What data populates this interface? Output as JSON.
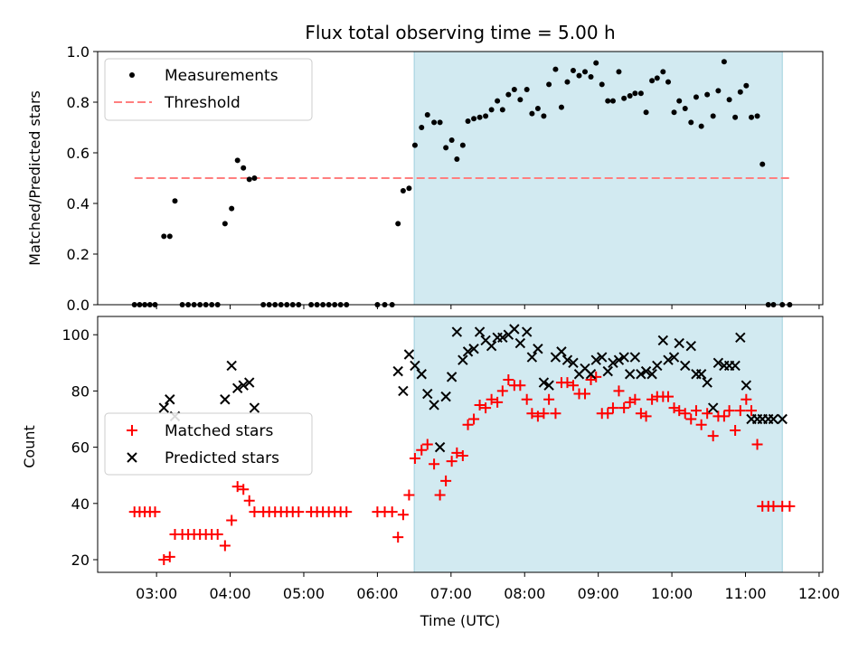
{
  "chart_data": [
    {
      "type": "scatter",
      "title": "Flux total observing time = 5.00 h",
      "ylabel": "Matched/Predicted stars",
      "ylim": [
        0,
        1.0
      ],
      "xlim": [
        2.2,
        12.05
      ],
      "yticks": [
        "0.0",
        "0.2",
        "0.4",
        "0.6",
        "0.8",
        "1.0"
      ],
      "highlight_span": [
        6.5,
        11.5
      ],
      "threshold": {
        "value": 0.5,
        "x_range": [
          2.7,
          11.6
        ],
        "color": "#ff7f7f"
      },
      "legend": {
        "position": "top-left",
        "entries": [
          "Measurements",
          "Threshold"
        ]
      },
      "series": [
        {
          "name": "Measurements",
          "marker": "dot",
          "color": "#000000",
          "x": [
            2.7,
            2.77,
            2.84,
            2.91,
            2.98,
            3.1,
            3.18,
            3.25,
            3.35,
            3.43,
            3.51,
            3.59,
            3.67,
            3.75,
            3.83,
            3.93,
            4.02,
            4.1,
            4.18,
            4.26,
            4.33,
            4.45,
            4.53,
            4.61,
            4.69,
            4.77,
            4.85,
            4.93,
            5.1,
            5.18,
            5.26,
            5.34,
            5.42,
            5.5,
            5.58,
            6.0,
            6.1,
            6.2,
            6.28,
            6.35,
            6.43,
            6.51,
            6.6,
            6.68,
            6.77,
            6.85,
            6.93,
            7.01,
            7.08,
            7.16,
            7.23,
            7.31,
            7.39,
            7.47,
            7.55,
            7.63,
            7.7,
            7.78,
            7.86,
            7.94,
            8.03,
            8.1,
            8.18,
            8.26,
            8.33,
            8.42,
            8.5,
            8.58,
            8.66,
            8.74,
            8.82,
            8.9,
            8.97,
            9.05,
            9.13,
            9.2,
            9.28,
            9.35,
            9.43,
            9.5,
            9.58,
            9.65,
            9.73,
            9.8,
            9.88,
            9.95,
            10.03,
            10.1,
            10.18,
            10.26,
            10.33,
            10.4,
            10.48,
            10.56,
            10.63,
            10.71,
            10.78,
            10.86,
            10.93,
            11.01,
            11.08,
            11.16,
            11.23,
            11.31,
            11.38,
            11.5,
            11.6
          ],
          "y": [
            0.0,
            0.0,
            0.0,
            0.0,
            0.0,
            0.27,
            0.27,
            0.41,
            0.0,
            0.0,
            0.0,
            0.0,
            0.0,
            0.0,
            0.0,
            0.32,
            0.38,
            0.57,
            0.54,
            0.495,
            0.5,
            0.0,
            0.0,
            0.0,
            0.0,
            0.0,
            0.0,
            0.0,
            0.0,
            0.0,
            0.0,
            0.0,
            0.0,
            0.0,
            0.0,
            0.0,
            0.0,
            0.0,
            0.32,
            0.45,
            0.46,
            0.63,
            0.7,
            0.75,
            0.72,
            0.72,
            0.62,
            0.65,
            0.575,
            0.63,
            0.725,
            0.735,
            0.74,
            0.745,
            0.77,
            0.805,
            0.77,
            0.83,
            0.85,
            0.81,
            0.85,
            0.755,
            0.775,
            0.745,
            0.87,
            0.93,
            0.78,
            0.88,
            0.925,
            0.905,
            0.92,
            0.9,
            0.955,
            0.87,
            0.805,
            0.805,
            0.92,
            0.815,
            0.825,
            0.835,
            0.835,
            0.76,
            0.885,
            0.895,
            0.92,
            0.88,
            0.76,
            0.805,
            0.775,
            0.72,
            0.82,
            0.705,
            0.83,
            0.745,
            0.845,
            0.96,
            0.81,
            0.74,
            0.84,
            0.865,
            0.74,
            0.745,
            0.555,
            0.0,
            0.0,
            0.0,
            0.0
          ]
        }
      ]
    },
    {
      "type": "scatter",
      "ylabel": "Count",
      "xlabel": "Time (UTC)",
      "ylim": [
        15.5,
        106.5
      ],
      "xlim": [
        2.2,
        12.05
      ],
      "yticks": [
        "20",
        "40",
        "60",
        "80",
        "100"
      ],
      "xticks": [
        "03:00",
        "04:00",
        "05:00",
        "06:00",
        "07:00",
        "08:00",
        "09:00",
        "10:00",
        "11:00",
        "12:00"
      ],
      "highlight_span": [
        6.5,
        11.5
      ],
      "legend": {
        "position": "center-left",
        "entries": [
          "Matched stars",
          "Predicted stars"
        ]
      },
      "series": [
        {
          "name": "Matched stars",
          "marker": "plus",
          "color": "#ff0000",
          "x": [
            2.7,
            2.77,
            2.84,
            2.91,
            2.98,
            3.1,
            3.18,
            3.25,
            3.35,
            3.43,
            3.51,
            3.59,
            3.67,
            3.75,
            3.83,
            3.93,
            4.02,
            4.1,
            4.18,
            4.26,
            4.33,
            4.45,
            4.53,
            4.61,
            4.69,
            4.77,
            4.85,
            4.93,
            5.1,
            5.18,
            5.26,
            5.34,
            5.42,
            5.5,
            5.58,
            6.0,
            6.1,
            6.2,
            6.28,
            6.35,
            6.43,
            6.51,
            6.6,
            6.68,
            6.77,
            6.85,
            6.93,
            7.01,
            7.08,
            7.16,
            7.23,
            7.31,
            7.39,
            7.47,
            7.55,
            7.63,
            7.7,
            7.78,
            7.86,
            7.94,
            8.03,
            8.1,
            8.18,
            8.26,
            8.33,
            8.42,
            8.5,
            8.58,
            8.66,
            8.74,
            8.82,
            8.9,
            8.97,
            9.05,
            9.13,
            9.2,
            9.28,
            9.35,
            9.43,
            9.5,
            9.58,
            9.65,
            9.73,
            9.8,
            9.88,
            9.95,
            10.03,
            10.1,
            10.18,
            10.26,
            10.33,
            10.4,
            10.48,
            10.56,
            10.63,
            10.71,
            10.78,
            10.86,
            10.93,
            11.01,
            11.08,
            11.16,
            11.23,
            11.31,
            11.38,
            11.5,
            11.6
          ],
          "y": [
            37,
            37,
            37,
            37,
            37,
            20,
            21,
            29,
            29,
            29,
            29,
            29,
            29,
            29,
            29,
            25,
            34,
            46,
            45,
            41,
            37,
            37,
            37,
            37,
            37,
            37,
            37,
            37,
            37,
            37,
            37,
            37,
            37,
            37,
            37,
            37,
            37,
            37,
            28,
            36,
            43,
            56,
            59,
            61,
            54,
            43,
            48,
            55,
            58,
            57,
            68,
            70,
            75,
            74,
            77,
            76,
            80,
            84,
            82,
            82,
            77,
            72,
            71,
            72,
            77,
            72,
            83,
            83,
            82,
            79,
            79,
            84,
            85,
            72,
            72,
            74,
            80,
            74,
            76,
            77,
            72,
            71,
            77,
            78,
            78,
            78,
            74,
            73,
            72,
            70,
            73,
            68,
            72,
            64,
            71,
            71,
            73,
            66,
            73,
            77,
            73,
            61,
            39,
            39,
            39,
            39,
            39
          ]
        },
        {
          "name": "Predicted stars",
          "marker": "x",
          "color": "#000000",
          "x": [
            3.1,
            3.18,
            3.25,
            3.93,
            4.02,
            4.1,
            4.18,
            4.26,
            4.33,
            6.28,
            6.35,
            6.43,
            6.51,
            6.6,
            6.68,
            6.77,
            6.85,
            6.93,
            7.01,
            7.08,
            7.16,
            7.23,
            7.31,
            7.39,
            7.47,
            7.55,
            7.63,
            7.7,
            7.78,
            7.86,
            7.94,
            8.03,
            8.1,
            8.18,
            8.26,
            8.33,
            8.42,
            8.5,
            8.58,
            8.66,
            8.74,
            8.82,
            8.9,
            8.97,
            9.05,
            9.13,
            9.2,
            9.28,
            9.35,
            9.43,
            9.5,
            9.58,
            9.65,
            9.73,
            9.8,
            9.88,
            9.95,
            10.03,
            10.1,
            10.18,
            10.26,
            10.33,
            10.4,
            10.48,
            10.56,
            10.63,
            10.71,
            10.78,
            10.86,
            10.93,
            11.01,
            11.08,
            11.16,
            11.23,
            11.31,
            11.38,
            11.5
          ],
          "y": [
            74,
            77,
            71,
            77,
            89,
            81,
            82,
            83,
            74,
            87,
            80,
            93,
            89,
            86,
            79,
            75,
            60,
            78,
            85,
            101,
            91,
            94,
            95,
            101,
            98,
            96,
            99,
            99,
            100,
            102,
            97,
            101,
            92,
            95,
            83,
            82,
            92,
            94,
            91,
            90,
            86,
            88,
            86,
            91,
            92,
            87,
            90,
            91,
            92,
            86,
            92,
            86,
            87,
            86,
            89,
            98,
            91,
            92,
            97,
            89,
            96,
            86,
            86,
            83,
            74,
            90,
            89,
            89,
            89,
            99,
            82,
            70,
            70,
            70,
            70,
            70,
            70
          ]
        }
      ]
    }
  ]
}
